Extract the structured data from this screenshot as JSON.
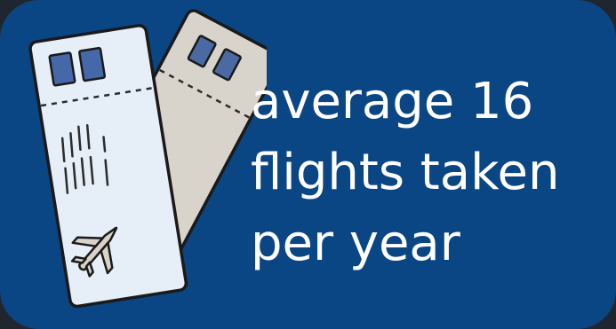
{
  "illustration": {
    "icon": "airplane-ticket-icon"
  },
  "stat": {
    "line1": "average 16",
    "line2": "flights taken",
    "line3": "per year"
  }
}
